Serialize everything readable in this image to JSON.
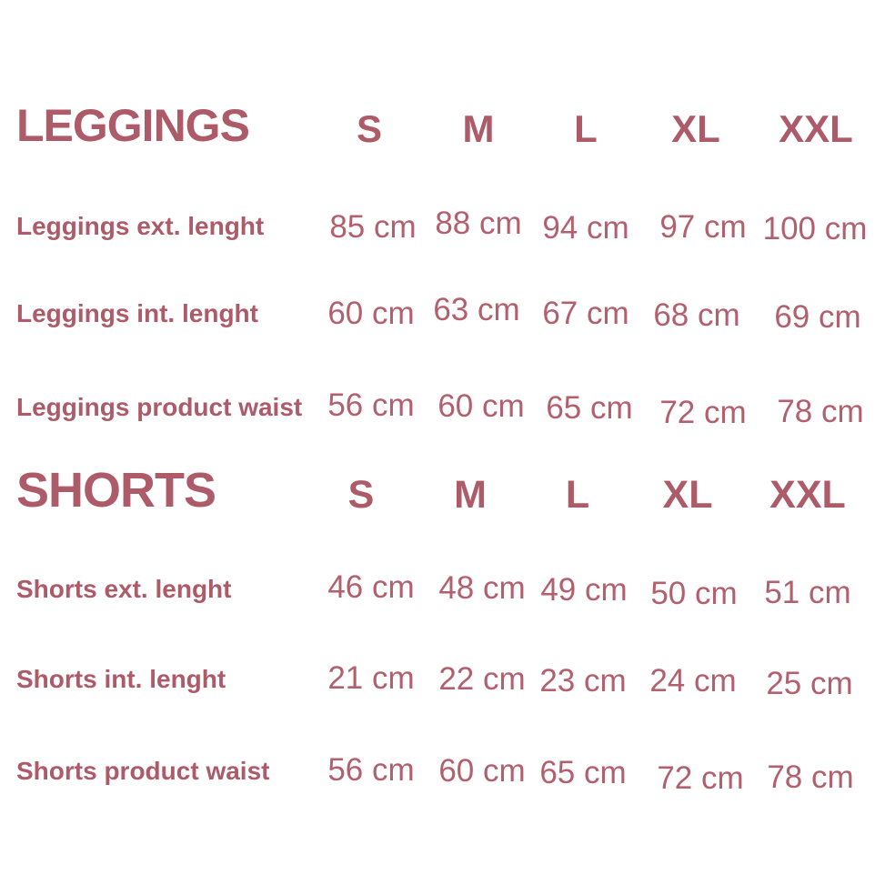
{
  "page": {
    "background_color": "#ffffff",
    "text_color": "#ad5b69",
    "value_text_color": "#b2606e"
  },
  "sections": [
    {
      "title": "LEGGINGS",
      "sizes": [
        "S",
        "M",
        "L",
        "XL",
        "XXL"
      ],
      "rows": [
        {
          "label": "Leggings ext. lenght",
          "values": [
            "85 cm",
            "88 cm",
            "94 cm",
            "97 cm",
            "100 cm"
          ]
        },
        {
          "label": "Leggings int. lenght",
          "values": [
            "60 cm",
            "63 cm",
            "67 cm",
            "68 cm",
            "69 cm"
          ]
        },
        {
          "label": "Leggings product waist",
          "values": [
            "56 cm",
            "60 cm",
            "65 cm",
            "72 cm",
            "78 cm"
          ]
        }
      ]
    },
    {
      "title": "SHORTS",
      "sizes": [
        "S",
        "M",
        "L",
        "XL",
        "XXL"
      ],
      "rows": [
        {
          "label": "Shorts ext. lenght",
          "values": [
            "46 cm",
            "48 cm",
            "49 cm",
            "50 cm",
            "51 cm"
          ]
        },
        {
          "label": "Shorts int. lenght",
          "values": [
            "21 cm",
            "22 cm",
            "23 cm",
            "24 cm",
            "25 cm"
          ]
        },
        {
          "label": "Shorts product waist",
          "values": [
            "56 cm",
            "60 cm",
            "65 cm",
            "72 cm",
            "78 cm"
          ]
        }
      ]
    }
  ]
}
